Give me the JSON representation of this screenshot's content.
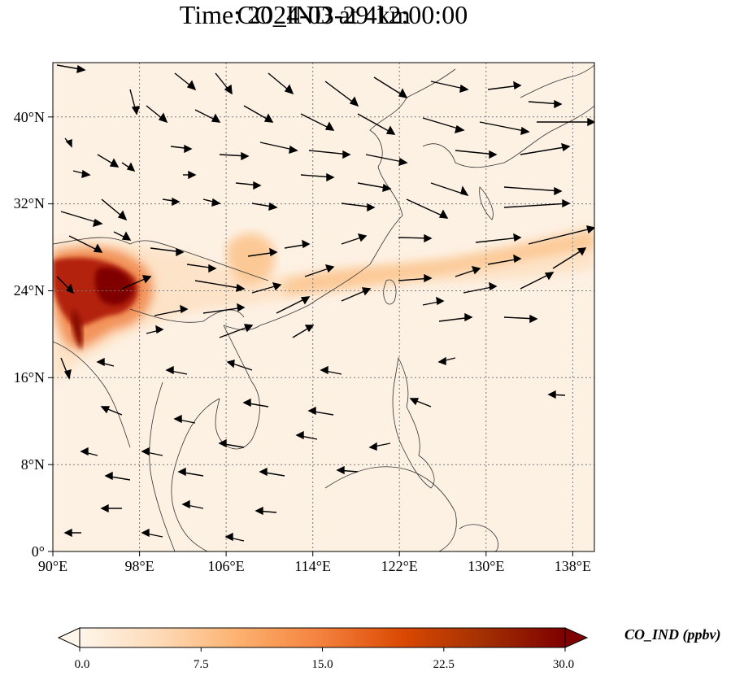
{
  "title": {
    "line1": "CO_IND at 4km",
    "line2": "Time: 2024-03-29 12:00:00"
  },
  "map": {
    "lon_range": [
      90,
      140
    ],
    "lat_range": [
      0,
      45
    ],
    "lon_ticks": [
      90,
      98,
      106,
      114,
      122,
      130,
      138
    ],
    "lat_ticks": [
      0,
      8,
      16,
      24,
      32,
      40
    ],
    "lon_tick_labels": [
      "90°E",
      "98°E",
      "106°E",
      "114°E",
      "122°E",
      "130°E",
      "138°E"
    ],
    "lat_tick_labels": [
      "0°",
      "8°N",
      "16°N",
      "24°N",
      "32°N",
      "40°N"
    ],
    "gridlines": true,
    "overlay": "wind vectors",
    "plume_source": "northern Myanmar / Yunnan border region",
    "plume_direction": "east-northeast toward Taiwan and south of Japan"
  },
  "colorbar": {
    "label": "CO_IND (ppbv)",
    "min": 0.0,
    "max": 30.0,
    "ticks": [
      "0.0",
      "7.5",
      "15.0",
      "22.5",
      "30.0"
    ],
    "extend": "both",
    "colormap": [
      "#fff5eb",
      "#fdd9b4",
      "#fdb06e",
      "#f4803c",
      "#d94801",
      "#a33003",
      "#7f0000"
    ]
  },
  "colors": {
    "map_background": "#fdf1e4",
    "coastline": "#333333",
    "gridline": "#777777",
    "arrow": "#000000"
  }
}
